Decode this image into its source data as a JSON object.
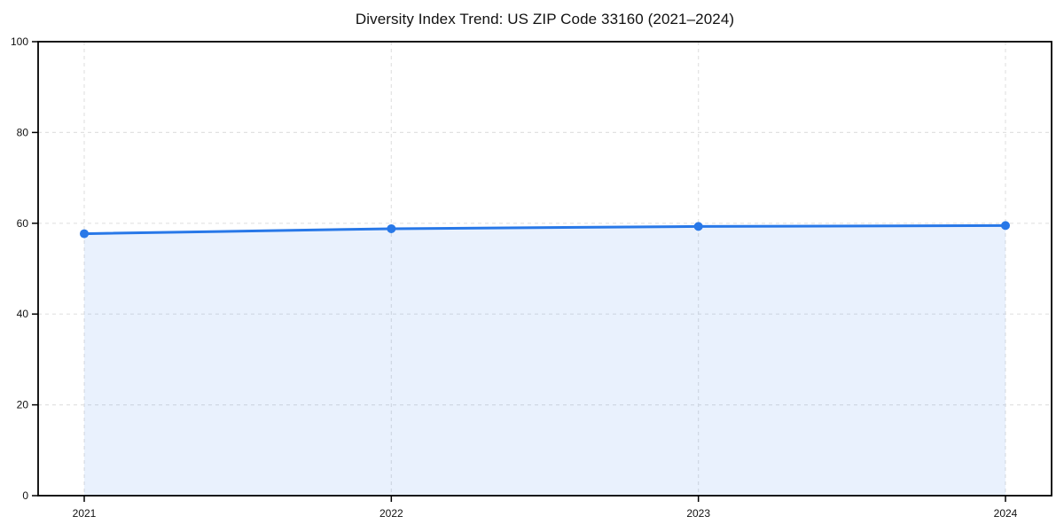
{
  "chart_data": {
    "type": "line",
    "title": "Diversity Index Trend: US ZIP Code 33160 (2021–2024)",
    "x": [
      "2021",
      "2022",
      "2023",
      "2024"
    ],
    "series": [
      {
        "name": "Diversity Index",
        "values": [
          57.7,
          58.8,
          59.3,
          59.5
        ]
      }
    ],
    "xlabel": "",
    "ylabel": "",
    "ylim": [
      0,
      100
    ],
    "yticks": [
      0,
      20,
      40,
      60,
      80,
      100
    ],
    "grid": "dashed",
    "area_fill": true,
    "legend": "none",
    "colors": {
      "line": "#2878e8",
      "fill": "rgba(40,120,232,0.10)",
      "grid": "#e2e2e2",
      "axis": "#000000",
      "text": "#111111",
      "background": "#ffffff"
    }
  }
}
